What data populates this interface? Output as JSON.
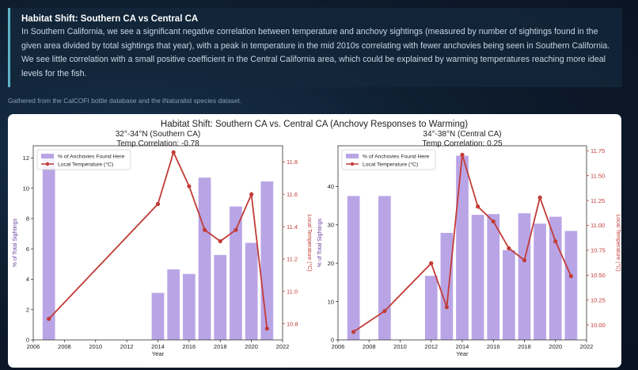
{
  "note": {
    "title": "Habitat Shift: Southern CA vs Central CA",
    "body": "In Southern California, we see a significant negative correlation between temperature and anchovy sightings (measured by number of sightings found in the given area divided by total sightings that year), with a peak in temperature in the mid 2010s correlating with fewer anchovies being seen in Southern California. We see little correlation with a small positive coefficient in the Central California area, which could be explained by warming temperatures reaching more ideal levels for the fish."
  },
  "source": "Gathered from the CalCOFI bottle database and the iNaturalist species dataset.",
  "colors": {
    "bar": "#b9a5e6",
    "line": "#c23b36",
    "left_axis_label": "#6a3fa0",
    "right_axis": "#c23b36"
  },
  "chart_data": {
    "suptitle": "Habitat Shift: Southern CA vs. Central CA (Anchovy Responses to Warming)",
    "charts": [
      {
        "type": "bar",
        "title": "32°-34°N (Southern CA)",
        "subtitle": "Temp Correlation: -0.78",
        "xlabel": "Year",
        "ylabel": "% of Total Sightings",
        "y2label": "Local Temperature (°C)",
        "xlim": [
          2006,
          2022
        ],
        "xticks": [
          2006,
          2008,
          2010,
          2012,
          2014,
          2016,
          2018,
          2020,
          2022
        ],
        "ylim": [
          0,
          12.8
        ],
        "yticks": [
          0,
          2,
          4,
          6,
          8,
          10,
          12
        ],
        "y2lim": [
          10.7,
          11.9
        ],
        "y2ticks": [
          10.8,
          11.0,
          11.2,
          11.4,
          11.6,
          11.8
        ],
        "y2ticklabels": [
          "10.8",
          "11.0",
          "11.2",
          "11.4",
          "11.6",
          "11.8"
        ],
        "legend": [
          "% of Anchovies Found Here",
          "Local Temperature (°C)"
        ],
        "legend_position": "top-left",
        "bars": [
          {
            "x": 2007,
            "y": 12.0
          },
          {
            "x": 2014,
            "y": 3.1
          },
          {
            "x": 2015,
            "y": 4.65
          },
          {
            "x": 2016,
            "y": 4.35
          },
          {
            "x": 2017,
            "y": 10.7
          },
          {
            "x": 2018,
            "y": 5.6
          },
          {
            "x": 2019,
            "y": 8.8
          },
          {
            "x": 2020,
            "y": 6.4
          },
          {
            "x": 2021,
            "y": 10.45
          }
        ],
        "temperature": [
          {
            "x": 2007,
            "y": 10.83
          },
          {
            "x": 2014,
            "y": 11.54
          },
          {
            "x": 2015,
            "y": 11.86
          },
          {
            "x": 2016,
            "y": 11.65
          },
          {
            "x": 2017,
            "y": 11.38
          },
          {
            "x": 2018,
            "y": 11.31
          },
          {
            "x": 2019,
            "y": 11.38
          },
          {
            "x": 2020,
            "y": 11.6
          },
          {
            "x": 2021,
            "y": 10.77
          }
        ]
      },
      {
        "type": "bar",
        "title": "34°-38°N (Central CA)",
        "subtitle": "Temp Correlation: 0.25",
        "xlabel": "Year",
        "ylabel": "% of Total Sightings",
        "y2label": "Local Temperature (°C)",
        "xlim": [
          2006,
          2022
        ],
        "xticks": [
          2006,
          2008,
          2010,
          2012,
          2014,
          2016,
          2018,
          2020,
          2022
        ],
        "ylim": [
          0,
          50.6
        ],
        "yticks": [
          0,
          10,
          20,
          30,
          40
        ],
        "y2lim": [
          9.85,
          11.8
        ],
        "y2ticks": [
          10.0,
          10.25,
          10.5,
          10.75,
          11.0,
          11.25,
          11.5,
          11.75
        ],
        "y2ticklabels": [
          "10.00",
          "10.25",
          "10.50",
          "10.75",
          "11.00",
          "11.25",
          "11.50",
          "11.75"
        ],
        "legend": [
          "% of Anchovies Found Here",
          "Local Temperature (°C)"
        ],
        "legend_position": "top-left",
        "bars": [
          {
            "x": 2007,
            "y": 37.5
          },
          {
            "x": 2009,
            "y": 37.5
          },
          {
            "x": 2012,
            "y": 16.7
          },
          {
            "x": 2013,
            "y": 27.9
          },
          {
            "x": 2014,
            "y": 48.0
          },
          {
            "x": 2015,
            "y": 32.6
          },
          {
            "x": 2016,
            "y": 32.8
          },
          {
            "x": 2017,
            "y": 23.4
          },
          {
            "x": 2018,
            "y": 33.0
          },
          {
            "x": 2019,
            "y": 30.3
          },
          {
            "x": 2020,
            "y": 32.1
          },
          {
            "x": 2021,
            "y": 28.4
          }
        ],
        "temperature": [
          {
            "x": 2007,
            "y": 9.93
          },
          {
            "x": 2009,
            "y": 10.14
          },
          {
            "x": 2012,
            "y": 10.62
          },
          {
            "x": 2013,
            "y": 10.18
          },
          {
            "x": 2014,
            "y": 11.71
          },
          {
            "x": 2015,
            "y": 11.19
          },
          {
            "x": 2016,
            "y": 11.04
          },
          {
            "x": 2017,
            "y": 10.77
          },
          {
            "x": 2018,
            "y": 10.65
          },
          {
            "x": 2019,
            "y": 11.28
          },
          {
            "x": 2020,
            "y": 10.84
          },
          {
            "x": 2021,
            "y": 10.49
          }
        ]
      }
    ]
  }
}
